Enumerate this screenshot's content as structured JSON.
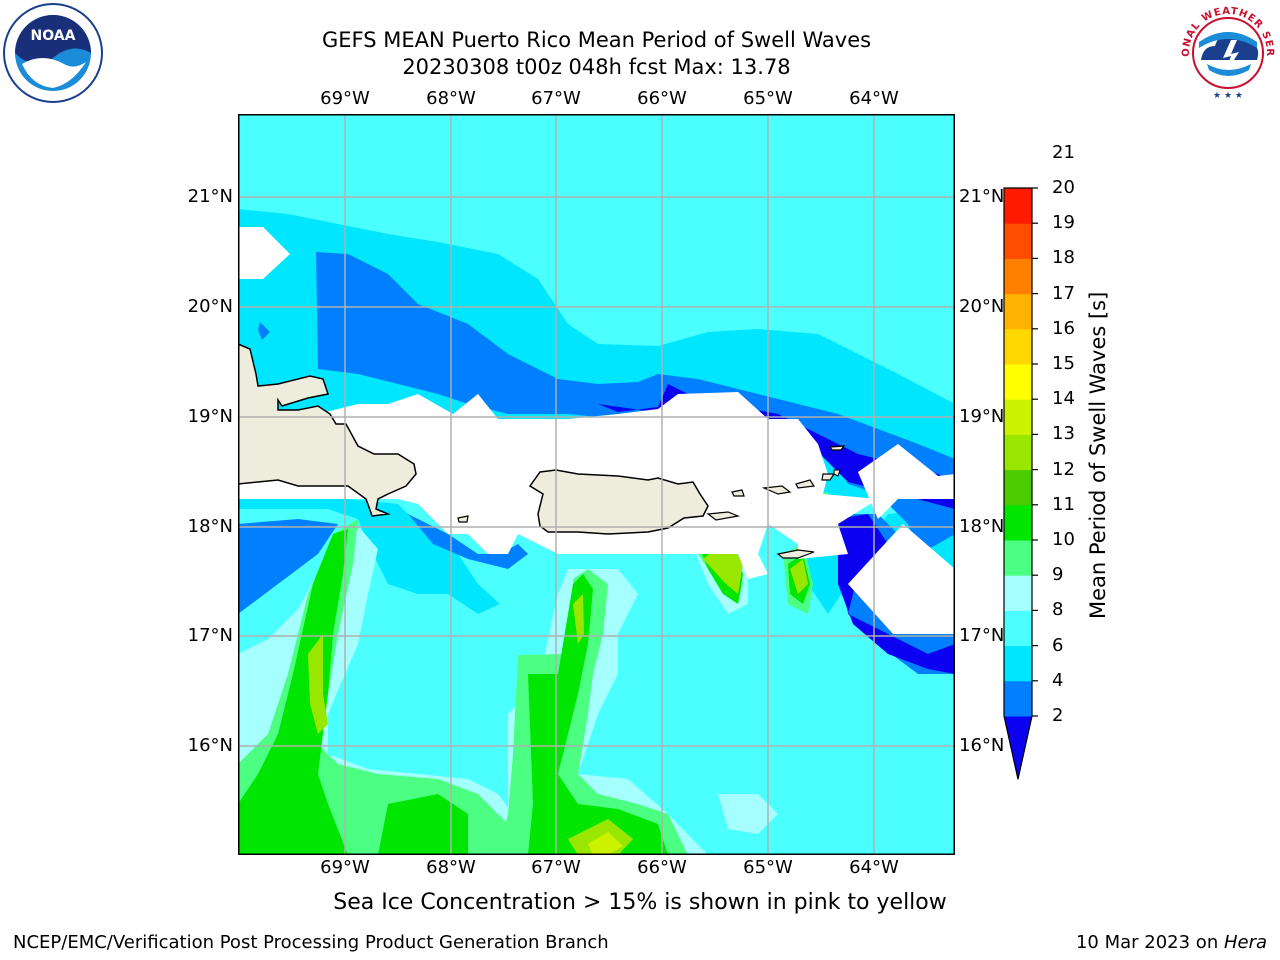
{
  "title": {
    "line1": "GEFS MEAN Puerto Rico Mean Period of Swell Waves",
    "line2": "20230308 t00z 048h fcst   Max: 13.78"
  },
  "map": {
    "lon_ticks": [
      "69°W",
      "68°W",
      "67°W",
      "66°W",
      "65°W",
      "64°W"
    ],
    "lat_ticks": [
      "21°N",
      "20°N",
      "19°N",
      "18°N",
      "17°N",
      "16°N"
    ],
    "land_color": "#eeeddd",
    "grid_color": "#b0b0b0"
  },
  "colorbar": {
    "label": "Mean Period of Swell Waves [s]",
    "ticks": [
      "2",
      "4",
      "6",
      "8",
      "9",
      "10",
      "11",
      "12",
      "13",
      "14",
      "15",
      "16",
      "17",
      "18",
      "19",
      "20",
      "21"
    ],
    "colors": [
      "#0b00f0",
      "#0080ff",
      "#00e6ff",
      "#4cffff",
      "#a6ffff",
      "#4cff82",
      "#00e600",
      "#4ccc00",
      "#99e600",
      "#cbf200",
      "#ffff00",
      "#ffd700",
      "#ffb200",
      "#ff8000",
      "#ff4d00",
      "#ff1a00"
    ]
  },
  "footnote": "Sea Ice Concentration > 15% is shown in pink to yellow",
  "footer": {
    "left": "NCEP/EMC/Verification Post Processing Product Generation Branch",
    "right_date": "10 Mar 2023 on ",
    "right_host": "Hera"
  },
  "logos": {
    "noaa_text": "NOAA",
    "nws_text": "NATIONAL WEATHER SERVICE"
  }
}
